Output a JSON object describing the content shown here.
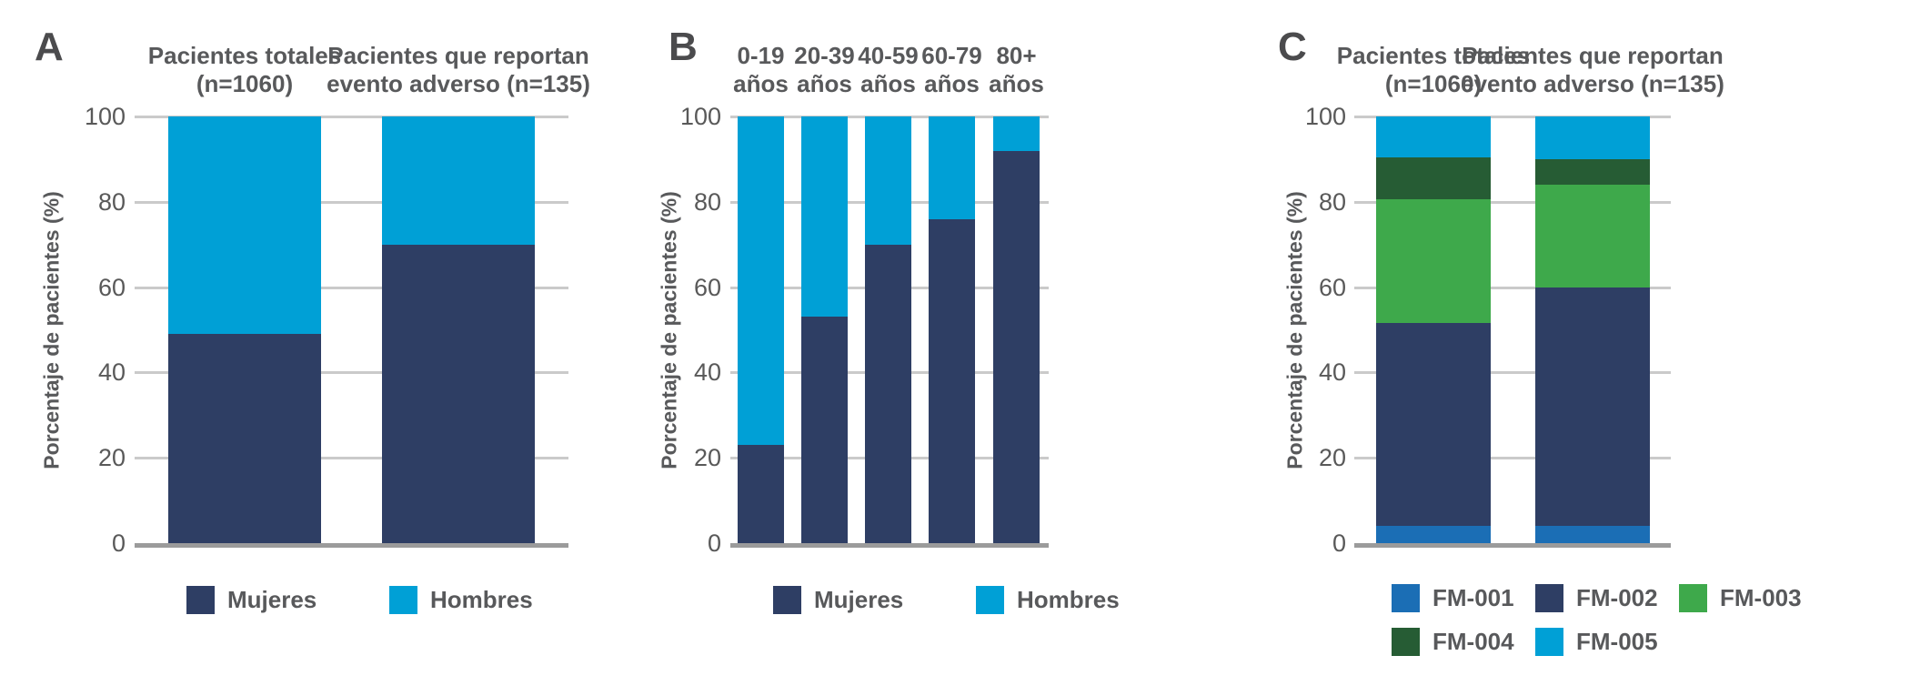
{
  "colors": {
    "navy": "#2e3e64",
    "cyan": "#00a0d6",
    "blue": "#1b6eb5",
    "green": "#3ea94b",
    "dark_green": "#265c34",
    "gridline": "#cacaca",
    "axis_line": "#9b9b9b",
    "text": "#58595b",
    "tick_text": "#595959",
    "panel_letter": "#4b4b4d",
    "background": "#ffffff"
  },
  "figure": {
    "y_axis_label": "Porcentaje de pacientes (%)"
  },
  "chart_data": [
    {
      "panel": "A",
      "type": "bar",
      "stacked": true,
      "title": "",
      "xlabel": "",
      "ylabel": "Porcentaje de pacientes (%)",
      "ylim": [
        0,
        100
      ],
      "yticks": [
        0,
        20,
        40,
        60,
        80,
        100
      ],
      "grid": true,
      "legend_position": "bottom",
      "categories": [
        {
          "line1": "Pacientes totales",
          "line2": "(n=1060)"
        },
        {
          "line1": "Pacientes que reportan",
          "line2": "evento adverso (n=135)"
        }
      ],
      "series": [
        {
          "name": "Mujeres",
          "color": "#2e3e64",
          "values": [
            49,
            70
          ]
        },
        {
          "name": "Hombres",
          "color": "#00a0d6",
          "values": [
            51,
            30
          ]
        }
      ]
    },
    {
      "panel": "B",
      "type": "bar",
      "stacked": true,
      "title": "",
      "xlabel": "",
      "ylabel": "Porcentaje de pacientes (%)",
      "ylim": [
        0,
        100
      ],
      "yticks": [
        0,
        20,
        40,
        60,
        80,
        100
      ],
      "grid": true,
      "legend_position": "bottom",
      "categories": [
        {
          "line1": "0-19",
          "line2": "años"
        },
        {
          "line1": "20-39",
          "line2": "años"
        },
        {
          "line1": "40-59",
          "line2": "años"
        },
        {
          "line1": "60-79",
          "line2": "años"
        },
        {
          "line1": "80+",
          "line2": "años"
        }
      ],
      "series": [
        {
          "name": "Mujeres",
          "color": "#2e3e64",
          "values": [
            23,
            53,
            70,
            76,
            92
          ]
        },
        {
          "name": "Hombres",
          "color": "#00a0d6",
          "values": [
            77,
            47,
            30,
            24,
            8
          ]
        }
      ]
    },
    {
      "panel": "C",
      "type": "bar",
      "stacked": true,
      "title": "",
      "xlabel": "",
      "ylabel": "Porcentaje de pacientes (%)",
      "ylim": [
        0,
        100
      ],
      "yticks": [
        0,
        20,
        40,
        60,
        80,
        100
      ],
      "grid": true,
      "legend_position": "bottom",
      "categories": [
        {
          "line1": "Pacientes totales",
          "line2": "(n=1060)"
        },
        {
          "line1": "Pacientes que reportan",
          "line2": "evento adverso (n=135)"
        }
      ],
      "series": [
        {
          "name": "FM-001",
          "color": "#1b6eb5",
          "values": [
            4,
            4
          ]
        },
        {
          "name": "FM-002",
          "color": "#2e3e64",
          "values": [
            47.5,
            56
          ]
        },
        {
          "name": "FM-003",
          "color": "#3ea94b",
          "values": [
            29,
            24
          ]
        },
        {
          "name": "FM-004",
          "color": "#265c34",
          "values": [
            10,
            6
          ]
        },
        {
          "name": "FM-005",
          "color": "#00a0d6",
          "values": [
            9.5,
            10
          ]
        }
      ]
    }
  ]
}
